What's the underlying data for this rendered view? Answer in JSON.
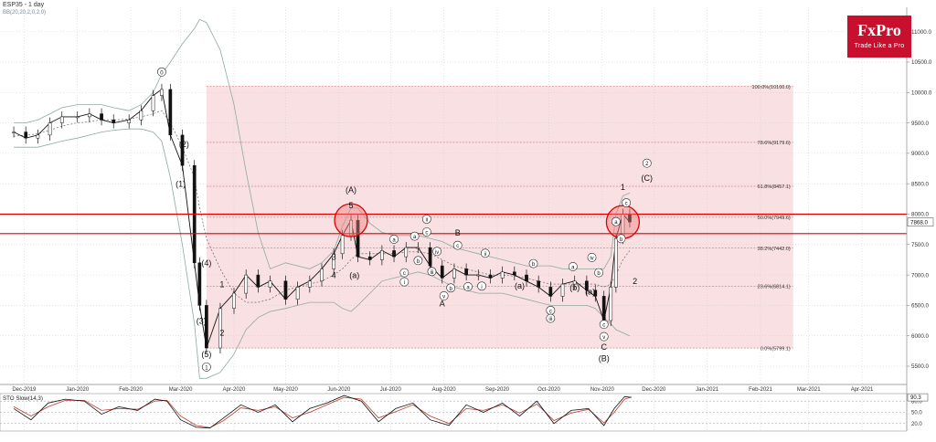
{
  "header": {
    "symbol_title": "ESP35 - 1 day",
    "indicator_label": "BB(20,20,2,0,2,0)"
  },
  "logo": {
    "name": "FxPro",
    "tagline": "Trade Like a Pro",
    "color": "#c8102e"
  },
  "chart_data": [
    {
      "type": "line",
      "subtype": "candlestick-elliott-wave",
      "symbol": "ESP35",
      "timeframe": "1 day",
      "ylim": [
        5200,
        11400
      ],
      "grid": true,
      "x_tick_labels": [
        "Dec-2019",
        "Jan-2020",
        "Feb-2020",
        "Mar-2020",
        "Apr-2020",
        "May-2020",
        "Jun-2020",
        "Jul-2020",
        "Aug-2020",
        "Sep-2020",
        "Oct-2020",
        "Nov-2020",
        "Dec-2020",
        "Jan-2021",
        "Feb-2021",
        "Mar-2021",
        "Apr-2021"
      ],
      "y_ticks": [
        5500,
        6000,
        6500,
        7000,
        7500,
        8000,
        8500,
        9000,
        9500,
        10000,
        10500,
        11000
      ],
      "current_price_label": "7868.0",
      "series": [
        {
          "values_label": "price",
          "x": [
            "2019-11-25",
            "2019-12-02",
            "2019-12-09",
            "2019-12-16",
            "2019-12-23",
            "2020-01-01",
            "2020-01-08",
            "2020-01-15",
            "2020-01-22",
            "2020-01-31",
            "2020-02-07",
            "2020-02-14",
            "2020-02-19",
            "2020-02-24",
            "2020-03-02",
            "2020-03-09",
            "2020-03-12",
            "2020-03-16",
            "2020-03-24",
            "2020-04-01",
            "2020-04-08",
            "2020-04-15",
            "2020-04-22",
            "2020-05-01",
            "2020-05-08",
            "2020-05-15",
            "2020-05-22",
            "2020-05-29",
            "2020-06-03",
            "2020-06-08",
            "2020-06-12",
            "2020-06-19",
            "2020-06-26",
            "2020-07-03",
            "2020-07-10",
            "2020-07-17",
            "2020-07-24",
            "2020-07-31",
            "2020-08-07",
            "2020-08-14",
            "2020-08-21",
            "2020-08-28",
            "2020-09-04",
            "2020-09-11",
            "2020-09-18",
            "2020-09-25",
            "2020-10-02",
            "2020-10-09",
            "2020-10-16",
            "2020-10-23",
            "2020-10-28",
            "2020-11-02",
            "2020-11-06",
            "2020-11-09",
            "2020-11-13",
            "2020-11-17"
          ],
          "values": [
            9350,
            9250,
            9300,
            9500,
            9600,
            9600,
            9650,
            9550,
            9500,
            9550,
            9700,
            9950,
            10050,
            9300,
            8800,
            7200,
            6500,
            5800,
            6450,
            6700,
            7000,
            6800,
            6900,
            6600,
            6800,
            6900,
            7100,
            7350,
            7650,
            7900,
            7300,
            7250,
            7400,
            7300,
            7450,
            7450,
            7150,
            6950,
            7100,
            7000,
            7000,
            6950,
            7050,
            7000,
            6900,
            6800,
            6650,
            6850,
            6900,
            6750,
            6650,
            6250,
            6800,
            7600,
            8000,
            7870
          ]
        }
      ],
      "bollinger": {
        "upper": [
          9500,
          9500,
          9550,
          9650,
          9750,
          9800,
          9800,
          9800,
          9750,
          9700,
          9800,
          10000,
          10300,
          10500,
          10800,
          11050,
          11200,
          11150,
          10700,
          9800,
          8700,
          7700,
          7100,
          7200,
          7150,
          7100,
          7200,
          7400,
          7800,
          8100,
          8100,
          7850,
          7700,
          7650,
          7650,
          7650,
          7600,
          7550,
          7450,
          7400,
          7350,
          7300,
          7250,
          7200,
          7150,
          7150,
          7150,
          7100,
          7100,
          7100,
          7100,
          7100,
          7300,
          8000,
          8300,
          8350
        ],
        "middle": [
          9280,
          9300,
          9320,
          9380,
          9450,
          9500,
          9520,
          9550,
          9550,
          9560,
          9600,
          9650,
          9700,
          9500,
          9100,
          8600,
          8100,
          7600,
          7100,
          6700,
          6550,
          6550,
          6600,
          6750,
          6800,
          6850,
          6900,
          7000,
          7100,
          7250,
          7350,
          7350,
          7350,
          7350,
          7380,
          7380,
          7350,
          7250,
          7150,
          7100,
          7050,
          7000,
          7000,
          6980,
          6950,
          6900,
          6850,
          6850,
          6850,
          6850,
          6850,
          6800,
          6850,
          7000,
          7250,
          7400
        ],
        "lower": [
          9100,
          9100,
          9100,
          9150,
          9200,
          9250,
          9300,
          9350,
          9380,
          9400,
          9400,
          9350,
          9200,
          8600,
          7500,
          6200,
          5300,
          5300,
          5400,
          5700,
          6100,
          6300,
          6400,
          6450,
          6500,
          6550,
          6550,
          6550,
          6450,
          6400,
          6500,
          6700,
          6900,
          6950,
          7000,
          7050,
          7000,
          6900,
          6800,
          6750,
          6700,
          6700,
          6700,
          6650,
          6600,
          6550,
          6500,
          6500,
          6500,
          6500,
          6450,
          6300,
          6200,
          6100,
          6050,
          6000
        ]
      },
      "horizontal_lines": [
        {
          "value": 8000,
          "color": "#e00000"
        },
        {
          "value": 7680,
          "color": "#e00000"
        }
      ],
      "fibonacci": {
        "range_x": [
          "2020-03-16",
          "2021-02-20"
        ],
        "levels": [
          {
            "label": "100.0%(10100.0)",
            "value": 10100
          },
          {
            "label": "78.6%(9179.6)",
            "value": 9179.6
          },
          {
            "label": "61.8%(8457.1)",
            "value": 8457.1
          },
          {
            "label": "50.0%(7949.6)",
            "value": 7949.6
          },
          {
            "label": "38.2%(7442.0)",
            "value": 7442.0
          },
          {
            "label": "23.6%(6814.1)",
            "value": 6814.1
          },
          {
            "label": "0.0%(5799.1)",
            "value": 5799.1
          }
        ]
      },
      "circles": [
        {
          "x": "2020-06-08",
          "y": 7900
        },
        {
          "x": "2020-11-13",
          "y": 7870
        }
      ],
      "wave_labels": [
        {
          "text": "0",
          "x": "2020-02-19",
          "y": 10300,
          "circled": true
        },
        {
          "text": "(2)",
          "x": "2020-03-03",
          "y": 9100,
          "circled": false
        },
        {
          "text": "(1)",
          "x": "2020-03-01",
          "y": 8450,
          "circled": false
        },
        {
          "text": "(4)",
          "x": "2020-03-16",
          "y": 7150,
          "circled": false
        },
        {
          "text": "1",
          "x": "2020-03-25",
          "y": 6800,
          "circled": false
        },
        {
          "text": "(3)",
          "x": "2020-03-13",
          "y": 6200,
          "circled": false
        },
        {
          "text": "2",
          "x": "2020-03-25",
          "y": 6000,
          "circled": false
        },
        {
          "text": "(5)",
          "x": "2020-03-16",
          "y": 5650,
          "circled": false
        },
        {
          "text": "1",
          "x": "2020-03-16",
          "y": 5450,
          "circled": true
        },
        {
          "text": "(A)",
          "x": "2020-06-08",
          "y": 8350,
          "circled": false
        },
        {
          "text": "5",
          "x": "2020-06-08",
          "y": 8100,
          "circled": false
        },
        {
          "text": "3",
          "x": "2020-05-29",
          "y": 7250,
          "circled": false
        },
        {
          "text": "4",
          "x": "2020-05-29",
          "y": 6950,
          "circled": false
        },
        {
          "text": "(a)",
          "x": "2020-06-10",
          "y": 6950,
          "circled": false
        },
        {
          "text": "a",
          "x": "2020-07-03",
          "y": 7550,
          "circled": true
        },
        {
          "text": "c",
          "x": "2020-07-09",
          "y": 7000,
          "circled": true
        },
        {
          "text": "i",
          "x": "2020-07-09",
          "y": 6850,
          "circled": true
        },
        {
          "text": "a",
          "x": "2020-07-15",
          "y": 7600,
          "circled": true
        },
        {
          "text": "b",
          "x": "2020-07-17",
          "y": 7200,
          "circled": true
        },
        {
          "text": "c",
          "x": "2020-07-22",
          "y": 7670,
          "circled": true
        },
        {
          "text": "ii",
          "x": "2020-07-22",
          "y": 7880,
          "circled": true
        },
        {
          "text": "iv",
          "x": "2020-07-28",
          "y": 7350,
          "circled": true
        },
        {
          "text": "iii",
          "x": "2020-07-25",
          "y": 7020,
          "circled": true
        },
        {
          "text": "v",
          "x": "2020-08-01",
          "y": 6620,
          "circled": true
        },
        {
          "text": "b",
          "x": "2020-08-05",
          "y": 6750,
          "circled": true
        },
        {
          "text": "A",
          "x": "2020-07-31",
          "y": 6480,
          "circled": false
        },
        {
          "text": "B",
          "x": "2020-08-09",
          "y": 7650,
          "circled": false
        },
        {
          "text": "c",
          "x": "2020-08-09",
          "y": 7450,
          "circled": true
        },
        {
          "text": "a",
          "x": "2020-08-15",
          "y": 6770,
          "circled": true
        },
        {
          "text": "ii",
          "x": "2020-08-25",
          "y": 7320,
          "circled": true
        },
        {
          "text": "i",
          "x": "2020-08-23",
          "y": 6780,
          "circled": true
        },
        {
          "text": "(a)",
          "x": "2020-09-14",
          "y": 6780,
          "circled": false
        },
        {
          "text": "b",
          "x": "2020-09-22",
          "y": 7150,
          "circled": true
        },
        {
          "text": "c",
          "x": "2020-10-02",
          "y": 6380,
          "circled": true
        },
        {
          "text": "iii",
          "x": "2020-10-02",
          "y": 6250,
          "circled": true
        },
        {
          "text": "a",
          "x": "2020-10-15",
          "y": 7100,
          "circled": true
        },
        {
          "text": "(b)",
          "x": "2020-10-16",
          "y": 6750,
          "circled": false
        },
        {
          "text": "iv",
          "x": "2020-10-26",
          "y": 7250,
          "circled": true
        },
        {
          "text": "b",
          "x": "2020-10-30",
          "y": 7000,
          "circled": true
        },
        {
          "text": "(a)",
          "x": "2020-10-25",
          "y": 6680,
          "circled": false
        },
        {
          "text": "c",
          "x": "2020-11-02",
          "y": 6150,
          "circled": true
        },
        {
          "text": "v",
          "x": "2020-11-02",
          "y": 5950,
          "circled": true
        },
        {
          "text": "C",
          "x": "2020-11-02",
          "y": 5770,
          "circled": false
        },
        {
          "text": "(B)",
          "x": "2020-11-02",
          "y": 5580,
          "circled": false
        },
        {
          "text": "2",
          "x": "2020-11-20",
          "y": 6850,
          "circled": false
        },
        {
          "text": "1",
          "x": "2020-11-13",
          "y": 8400,
          "circled": false
        },
        {
          "text": "c",
          "x": "2020-11-15",
          "y": 8150,
          "circled": true
        },
        {
          "text": "a",
          "x": "2020-11-09",
          "y": 7840,
          "circled": true
        },
        {
          "text": "b",
          "x": "2020-11-12",
          "y": 7560,
          "circled": true
        },
        {
          "text": "2",
          "x": "2020-11-27",
          "y": 8800,
          "circled": true
        },
        {
          "text": "(C)",
          "x": "2020-11-27",
          "y": 8550,
          "circled": false
        }
      ]
    },
    {
      "type": "line",
      "title": "STO Slow(14,3)",
      "ylim": [
        0,
        100
      ],
      "y_tick_labels": [
        "80.0",
        "50.0",
        "20.0"
      ],
      "current_value_label": "90.3",
      "series": [
        {
          "values_label": "k",
          "x": [
            "2019-11-25",
            "2019-12-05",
            "2019-12-15",
            "2019-12-25",
            "2020-01-05",
            "2020-01-15",
            "2020-01-25",
            "2020-02-05",
            "2020-02-15",
            "2020-02-22",
            "2020-03-01",
            "2020-03-10",
            "2020-03-18",
            "2020-03-26",
            "2020-04-05",
            "2020-04-15",
            "2020-04-25",
            "2020-05-05",
            "2020-05-15",
            "2020-05-25",
            "2020-06-04",
            "2020-06-14",
            "2020-06-24",
            "2020-07-04",
            "2020-07-14",
            "2020-07-24",
            "2020-08-04",
            "2020-08-14",
            "2020-08-24",
            "2020-09-04",
            "2020-09-14",
            "2020-09-24",
            "2020-10-04",
            "2020-10-14",
            "2020-10-24",
            "2020-11-02",
            "2020-11-08",
            "2020-11-14",
            "2020-11-18"
          ],
          "values": [
            60,
            30,
            75,
            85,
            80,
            45,
            65,
            55,
            85,
            80,
            30,
            10,
            8,
            35,
            70,
            50,
            70,
            25,
            60,
            75,
            95,
            80,
            25,
            60,
            75,
            30,
            15,
            70,
            50,
            75,
            40,
            80,
            20,
            55,
            60,
            15,
            60,
            92,
            90
          ]
        },
        {
          "values_label": "d",
          "x": [
            "2019-11-25",
            "2019-12-05",
            "2019-12-15",
            "2019-12-25",
            "2020-01-05",
            "2020-01-15",
            "2020-01-25",
            "2020-02-05",
            "2020-02-15",
            "2020-02-22",
            "2020-03-01",
            "2020-03-10",
            "2020-03-18",
            "2020-03-26",
            "2020-04-05",
            "2020-04-15",
            "2020-04-25",
            "2020-05-05",
            "2020-05-15",
            "2020-05-25",
            "2020-06-04",
            "2020-06-14",
            "2020-06-24",
            "2020-07-04",
            "2020-07-14",
            "2020-07-24",
            "2020-08-04",
            "2020-08-14",
            "2020-08-24",
            "2020-09-04",
            "2020-09-14",
            "2020-09-24",
            "2020-10-04",
            "2020-10-14",
            "2020-10-24",
            "2020-11-02",
            "2020-11-08",
            "2020-11-14",
            "2020-11-18"
          ],
          "values": [
            65,
            40,
            65,
            82,
            82,
            55,
            60,
            58,
            80,
            82,
            40,
            15,
            9,
            28,
            62,
            55,
            65,
            35,
            50,
            70,
            90,
            85,
            35,
            52,
            70,
            40,
            20,
            60,
            55,
            70,
            48,
            72,
            28,
            48,
            58,
            22,
            50,
            85,
            91
          ]
        }
      ]
    }
  ]
}
